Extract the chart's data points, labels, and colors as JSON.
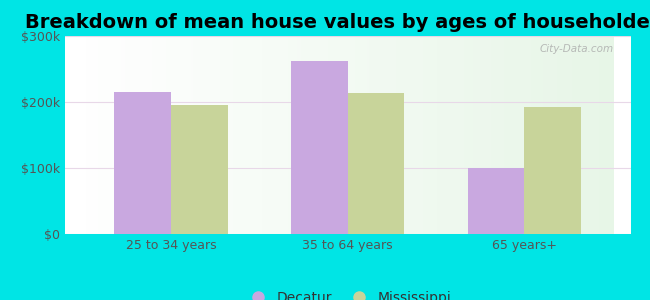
{
  "title": "Breakdown of mean house values by ages of householders",
  "categories": [
    "25 to 34 years",
    "35 to 64 years",
    "65 years+"
  ],
  "decatur_values": [
    215000,
    262000,
    100000
  ],
  "mississippi_values": [
    196000,
    213000,
    192000
  ],
  "decatur_color": "#c9a8e0",
  "mississippi_color": "#c8d49a",
  "background_outer": "#00e5e5",
  "ylim": [
    0,
    300000
  ],
  "yticks": [
    0,
    100000,
    200000,
    300000
  ],
  "ytick_labels": [
    "$0",
    "$100k",
    "$200k",
    "$300k"
  ],
  "bar_width": 0.32,
  "legend_labels": [
    "Decatur",
    "Mississippi"
  ],
  "title_fontsize": 14,
  "tick_fontsize": 9,
  "legend_fontsize": 10
}
